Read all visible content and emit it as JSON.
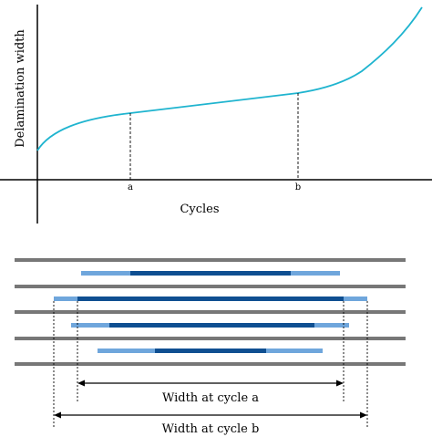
{
  "top_chart": {
    "y_axis_label": "Delamination width",
    "x_axis_label": "Cycles",
    "markers": [
      {
        "label": "a"
      },
      {
        "label": "b"
      }
    ],
    "curve_color": "#1fb4cf"
  },
  "bottom_diagram": {
    "ply_color": "#777777",
    "light_delam_color": "#6fa6dc",
    "dark_delam_color": "#0f4f91",
    "dimensions": [
      {
        "label": "Width at cycle a"
      },
      {
        "label": "Width at cycle b"
      }
    ]
  }
}
